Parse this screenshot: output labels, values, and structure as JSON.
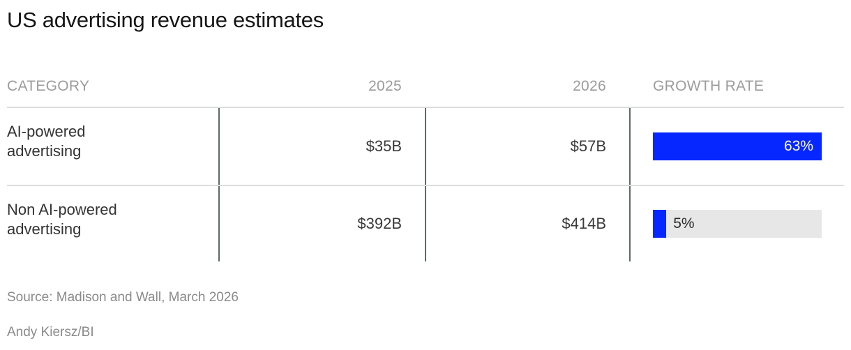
{
  "title": "US advertising revenue estimates",
  "table": {
    "columns": [
      "CATEGORY",
      "2025",
      "2026",
      "GROWTH RATE"
    ],
    "rows": [
      {
        "category": "AI-powered advertising",
        "y2025": "$35B",
        "y2026": "$57B",
        "growth_label": "63%",
        "growth_value": 63
      },
      {
        "category": "Non AI-powered advertising",
        "y2025": "$392B",
        "y2026": "$414B",
        "growth_label": "5%",
        "growth_value": 5
      }
    ]
  },
  "chart_data": {
    "type": "bar",
    "title": "US advertising revenue estimates",
    "categories": [
      "AI-powered advertising",
      "Non AI-powered advertising"
    ],
    "series": [
      {
        "name": "2025",
        "unit": "$B",
        "values": [
          35,
          392
        ]
      },
      {
        "name": "2026",
        "unit": "$B",
        "values": [
          57,
          414
        ]
      },
      {
        "name": "Growth rate",
        "unit": "%",
        "values": [
          63,
          5
        ]
      }
    ],
    "bar_encoding": "growth rate percent",
    "bar_scale_max": 63,
    "grid": false,
    "legend": "none"
  },
  "colors": {
    "accent_blue": "#0627ff",
    "bar_track_gray": "#e7e7e7",
    "divider_dark": "#5d686c",
    "rule_light": "#dcdcdc",
    "header_text": "#9c9c9c",
    "body_text": "#333333",
    "footer_text": "#8a8a8a"
  },
  "footer": {
    "source": "Source: Madison and Wall, March 2026",
    "credit": "Andy Kiersz/BI"
  }
}
